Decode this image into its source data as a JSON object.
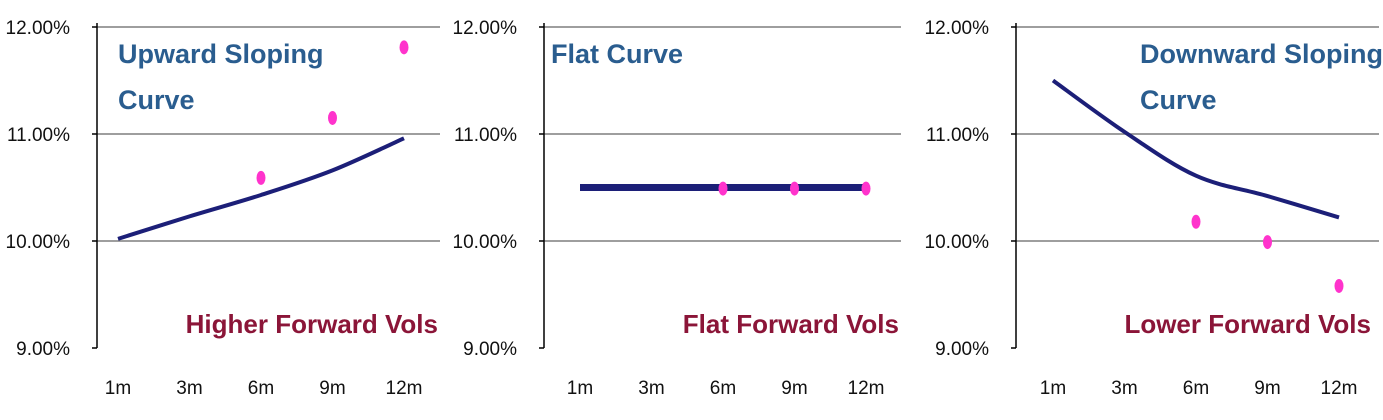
{
  "colors": {
    "curve": "#1c1f78",
    "points": "#ff33cc",
    "title_text": "#2a5d8f",
    "annotation_text": "#8b1538",
    "gridline": "#7f7f7f",
    "axis": "#000000"
  },
  "chart_data": [
    {
      "type": "line",
      "title_lines": [
        "Upward Sloping",
        "Curve"
      ],
      "annotation": "Higher Forward Vols",
      "categories": [
        "1m",
        "3m",
        "6m",
        "9m",
        "12m"
      ],
      "ylim": [
        0.09,
        0.12
      ],
      "yticks": [
        0.09,
        0.1,
        0.11,
        0.12
      ],
      "ytick_labels": [
        "9.00%",
        "10.00%",
        "11.00%",
        "12.00%"
      ],
      "grid": true,
      "series": [
        {
          "kind": "line",
          "values": [
            0.1002,
            0.1023,
            0.1043,
            0.1066,
            0.1096
          ]
        },
        {
          "kind": "points",
          "x": [
            "6m",
            "9m",
            "12m"
          ],
          "values": [
            0.1059,
            0.1115,
            0.1181
          ]
        }
      ]
    },
    {
      "type": "line",
      "title_lines": [
        "Flat Curve"
      ],
      "annotation": "Flat Forward Vols",
      "categories": [
        "1m",
        "3m",
        "6m",
        "9m",
        "12m"
      ],
      "ylim": [
        0.09,
        0.12
      ],
      "yticks": [
        0.09,
        0.1,
        0.11,
        0.12
      ],
      "ytick_labels": [
        "9.00%",
        "10.00%",
        "11.00%",
        "12.00%"
      ],
      "grid": true,
      "series": [
        {
          "kind": "line",
          "values": [
            0.105,
            0.105,
            0.105,
            0.105,
            0.105
          ]
        },
        {
          "kind": "points",
          "x": [
            "6m",
            "9m",
            "12m"
          ],
          "values": [
            0.1049,
            0.1049,
            0.1049
          ]
        }
      ]
    },
    {
      "type": "line",
      "title_lines": [
        "Downward Sloping",
        "Curve"
      ],
      "annotation": "Lower Forward Vols",
      "categories": [
        "1m",
        "3m",
        "6m",
        "9m",
        "12m"
      ],
      "ylim": [
        0.09,
        0.12
      ],
      "yticks": [
        0.09,
        0.1,
        0.11,
        0.12
      ],
      "ytick_labels": [
        "9.00%",
        "10.00%",
        "11.00%",
        "12.00%"
      ],
      "grid": true,
      "series": [
        {
          "kind": "line",
          "values": [
            0.115,
            0.1102,
            0.1061,
            0.1042,
            0.1022
          ]
        },
        {
          "kind": "points",
          "x": [
            "6m",
            "9m",
            "12m"
          ],
          "values": [
            0.1018,
            0.0999,
            0.0958
          ]
        }
      ]
    }
  ]
}
